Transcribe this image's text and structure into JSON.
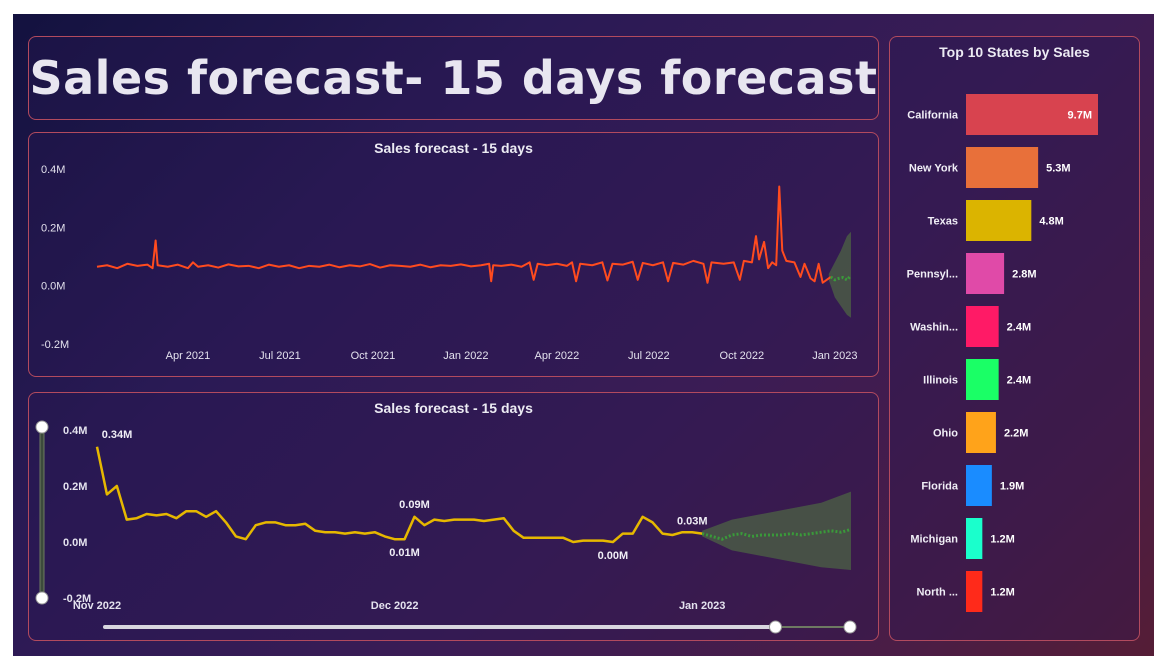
{
  "page": {
    "title": "Sales forecast- 15 days forecast"
  },
  "chart_data": [
    {
      "type": "line",
      "title": "Sales forecast - 15 days",
      "xlabel": "",
      "ylabel": "",
      "ylim": [
        -0.2,
        0.4
      ],
      "y_ticks": [
        "0.4M",
        "0.2M",
        "0.0M",
        "-0.2M"
      ],
      "y_tick_values": [
        0.4,
        0.2,
        0.0,
        -0.2
      ],
      "x_ticks": [
        "Apr 2021",
        "Jul 2021",
        "Oct 2021",
        "Jan 2022",
        "Apr 2022",
        "Jul 2022",
        "Oct 2022",
        "Jan 2023"
      ],
      "x_tick_days": [
        90,
        181,
        273,
        365,
        455,
        546,
        638,
        730
      ],
      "x_range_days": [
        0,
        746
      ],
      "series": [
        {
          "name": "Sales",
          "color": "#ff4b1f",
          "points": [
            [
              0,
              0.065
            ],
            [
              10,
              0.07
            ],
            [
              20,
              0.06
            ],
            [
              30,
              0.075
            ],
            [
              40,
              0.068
            ],
            [
              50,
              0.072
            ],
            [
              55,
              0.06
            ],
            [
              58,
              0.155
            ],
            [
              60,
              0.07
            ],
            [
              70,
              0.065
            ],
            [
              80,
              0.072
            ],
            [
              90,
              0.06
            ],
            [
              95,
              0.08
            ],
            [
              100,
              0.065
            ],
            [
              110,
              0.07
            ],
            [
              120,
              0.062
            ],
            [
              130,
              0.073
            ],
            [
              140,
              0.066
            ],
            [
              150,
              0.068
            ],
            [
              160,
              0.06
            ],
            [
              170,
              0.072
            ],
            [
              180,
              0.065
            ],
            [
              190,
              0.07
            ],
            [
              200,
              0.06
            ],
            [
              210,
              0.068
            ],
            [
              220,
              0.065
            ],
            [
              230,
              0.072
            ],
            [
              240,
              0.063
            ],
            [
              250,
              0.07
            ],
            [
              260,
              0.066
            ],
            [
              270,
              0.074
            ],
            [
              280,
              0.062
            ],
            [
              290,
              0.07
            ],
            [
              300,
              0.068
            ],
            [
              310,
              0.065
            ],
            [
              320,
              0.072
            ],
            [
              330,
              0.063
            ],
            [
              340,
              0.07
            ],
            [
              350,
              0.068
            ],
            [
              360,
              0.073
            ],
            [
              370,
              0.066
            ],
            [
              380,
              0.07
            ],
            [
              388,
              0.075
            ],
            [
              390,
              0.015
            ],
            [
              392,
              0.07
            ],
            [
              400,
              0.068
            ],
            [
              410,
              0.072
            ],
            [
              420,
              0.065
            ],
            [
              428,
              0.08
            ],
            [
              432,
              0.02
            ],
            [
              436,
              0.075
            ],
            [
              445,
              0.07
            ],
            [
              455,
              0.075
            ],
            [
              465,
              0.068
            ],
            [
              470,
              0.08
            ],
            [
              474,
              0.015
            ],
            [
              478,
              0.075
            ],
            [
              490,
              0.07
            ],
            [
              500,
              0.08
            ],
            [
              505,
              0.018
            ],
            [
              510,
              0.075
            ],
            [
              520,
              0.072
            ],
            [
              530,
              0.082
            ],
            [
              535,
              0.02
            ],
            [
              540,
              0.078
            ],
            [
              550,
              0.07
            ],
            [
              560,
              0.08
            ],
            [
              565,
              0.015
            ],
            [
              570,
              0.078
            ],
            [
              580,
              0.072
            ],
            [
              590,
              0.085
            ],
            [
              600,
              0.075
            ],
            [
              604,
              0.01
            ],
            [
              608,
              0.08
            ],
            [
              620,
              0.075
            ],
            [
              630,
              0.08
            ],
            [
              636,
              0.02
            ],
            [
              640,
              0.085
            ],
            [
              648,
              0.08
            ],
            [
              652,
              0.17
            ],
            [
              655,
              0.09
            ],
            [
              660,
              0.15
            ],
            [
              664,
              0.06
            ],
            [
              668,
              0.08
            ],
            [
              672,
              0.07
            ],
            [
              675,
              0.34
            ],
            [
              678,
              0.12
            ],
            [
              682,
              0.085
            ],
            [
              690,
              0.08
            ],
            [
              696,
              0.03
            ],
            [
              700,
              0.075
            ],
            [
              706,
              0.025
            ],
            [
              710,
              0.015
            ],
            [
              714,
              0.075
            ],
            [
              718,
              0.01
            ],
            [
              722,
              0.02
            ],
            [
              726,
              0.03
            ]
          ]
        },
        {
          "name": "Forecast",
          "color": "#3a9a3a",
          "points": [
            [
              726,
              0.03
            ],
            [
              730,
              0.02
            ],
            [
              734,
              0.025
            ],
            [
              738,
              0.028
            ],
            [
              742,
              0.02
            ],
            [
              746,
              0.035
            ]
          ]
        }
      ],
      "forecast_band": {
        "color": "#4a5a45",
        "upper": [
          [
            724,
            0.04
          ],
          [
            730,
            0.08
          ],
          [
            736,
            0.12
          ],
          [
            742,
            0.17
          ],
          [
            746,
            0.185
          ]
        ],
        "lower": [
          [
            724,
            0.02
          ],
          [
            730,
            -0.04
          ],
          [
            736,
            -0.07
          ],
          [
            742,
            -0.1
          ],
          [
            746,
            -0.11
          ]
        ]
      }
    },
    {
      "type": "line",
      "title": "Sales forecast - 15 days",
      "xlabel": "",
      "ylabel": "",
      "ylim": [
        -0.2,
        0.4
      ],
      "y_ticks": [
        "0.4M",
        "0.2M",
        "0.0M",
        "-0.2M"
      ],
      "y_tick_values": [
        0.4,
        0.2,
        0.0,
        -0.2
      ],
      "x_ticks": [
        "Nov 2022",
        "Dec 2022",
        "Jan 2023"
      ],
      "x_tick_days": [
        0,
        30,
        61
      ],
      "x_range_days": [
        0,
        76
      ],
      "series": [
        {
          "name": "Sales",
          "color": "#e6b800",
          "points": [
            [
              0,
              0.34
            ],
            [
              1,
              0.17
            ],
            [
              2,
              0.2
            ],
            [
              3,
              0.08
            ],
            [
              4,
              0.085
            ],
            [
              5,
              0.1
            ],
            [
              6,
              0.095
            ],
            [
              7,
              0.1
            ],
            [
              8,
              0.085
            ],
            [
              9,
              0.11
            ],
            [
              10,
              0.11
            ],
            [
              11,
              0.09
            ],
            [
              12,
              0.11
            ],
            [
              13,
              0.07
            ],
            [
              14,
              0.02
            ],
            [
              15,
              0.01
            ],
            [
              16,
              0.06
            ],
            [
              17,
              0.07
            ],
            [
              18,
              0.07
            ],
            [
              19,
              0.06
            ],
            [
              20,
              0.06
            ],
            [
              21,
              0.065
            ],
            [
              22,
              0.04
            ],
            [
              23,
              0.035
            ],
            [
              24,
              0.035
            ],
            [
              25,
              0.03
            ],
            [
              26,
              0.035
            ],
            [
              27,
              0.03
            ],
            [
              28,
              0.035
            ],
            [
              29,
              0.02
            ],
            [
              30,
              0.01
            ],
            [
              31,
              0.01
            ],
            [
              32,
              0.09
            ],
            [
              33,
              0.06
            ],
            [
              34,
              0.08
            ],
            [
              35,
              0.075
            ],
            [
              36,
              0.08
            ],
            [
              37,
              0.08
            ],
            [
              38,
              0.08
            ],
            [
              39,
              0.075
            ],
            [
              40,
              0.08
            ],
            [
              41,
              0.085
            ],
            [
              42,
              0.04
            ],
            [
              43,
              0.015
            ],
            [
              44,
              0.015
            ],
            [
              45,
              0.015
            ],
            [
              46,
              0.015
            ],
            [
              47,
              0.015
            ],
            [
              48,
              0.0
            ],
            [
              49,
              0.005
            ],
            [
              50,
              0.005
            ],
            [
              51,
              0.005
            ],
            [
              52,
              0.0
            ],
            [
              53,
              0.03
            ],
            [
              54,
              0.03
            ],
            [
              55,
              0.09
            ],
            [
              56,
              0.07
            ],
            [
              57,
              0.03
            ],
            [
              58,
              0.025
            ],
            [
              59,
              0.035
            ],
            [
              60,
              0.035
            ],
            [
              61,
              0.03
            ]
          ]
        },
        {
          "name": "Forecast",
          "color": "#3a9a3a",
          "points": [
            [
              61,
              0.03
            ],
            [
              62,
              0.02
            ],
            [
              63,
              0.01
            ],
            [
              64,
              0.025
            ],
            [
              65,
              0.03
            ],
            [
              66,
              0.02
            ],
            [
              67,
              0.025
            ],
            [
              68,
              0.025
            ],
            [
              69,
              0.025
            ],
            [
              70,
              0.03
            ],
            [
              71,
              0.025
            ],
            [
              72,
              0.03
            ],
            [
              73,
              0.035
            ],
            [
              74,
              0.04
            ],
            [
              75,
              0.035
            ],
            [
              76,
              0.045
            ]
          ]
        }
      ],
      "forecast_band": {
        "color": "#4a5a45",
        "upper": [
          [
            61,
            0.04
          ],
          [
            64,
            0.08
          ],
          [
            67,
            0.1
          ],
          [
            70,
            0.12
          ],
          [
            73,
            0.14
          ],
          [
            76,
            0.18
          ]
        ],
        "lower": [
          [
            61,
            0.02
          ],
          [
            64,
            -0.03
          ],
          [
            67,
            -0.05
          ],
          [
            70,
            -0.07
          ],
          [
            73,
            -0.09
          ],
          [
            76,
            -0.1
          ]
        ]
      },
      "data_labels": [
        {
          "x": 0,
          "y": 0.34,
          "text": "0.34M",
          "pos": "above"
        },
        {
          "x": 32,
          "y": 0.09,
          "text": "0.09M",
          "pos": "above"
        },
        {
          "x": 31,
          "y": 0.01,
          "text": "0.01M",
          "pos": "below"
        },
        {
          "x": 52,
          "y": 0.0,
          "text": "0.00M",
          "pos": "below"
        },
        {
          "x": 60,
          "y": 0.03,
          "text": "0.03M",
          "pos": "above"
        }
      ],
      "x_slider": {
        "start": 0.0,
        "end": 0.9
      },
      "y_slider": {
        "start": 0.0,
        "end": 1.0
      }
    },
    {
      "type": "bar",
      "orientation": "horizontal",
      "title": "Top 10 States by Sales",
      "max_value": 9.7,
      "categories": [
        "California",
        "New York",
        "Texas",
        "Pennsyl...",
        "Washin...",
        "Illinois",
        "Ohio",
        "Florida",
        "Michigan",
        "North ..."
      ],
      "values": [
        9.7,
        5.3,
        4.8,
        2.8,
        2.4,
        2.4,
        2.2,
        1.9,
        1.2,
        1.2
      ],
      "labels": [
        "9.7M",
        "5.3M",
        "4.8M",
        "2.8M",
        "2.4M",
        "2.4M",
        "2.2M",
        "1.9M",
        "1.2M",
        "1.2M"
      ],
      "colors": [
        "#d8434f",
        "#e8703a",
        "#dbb400",
        "#e04aa8",
        "#ff1a66",
        "#1aff66",
        "#ffa31a",
        "#1a8cff",
        "#1affcc",
        "#ff2a1a"
      ]
    }
  ]
}
